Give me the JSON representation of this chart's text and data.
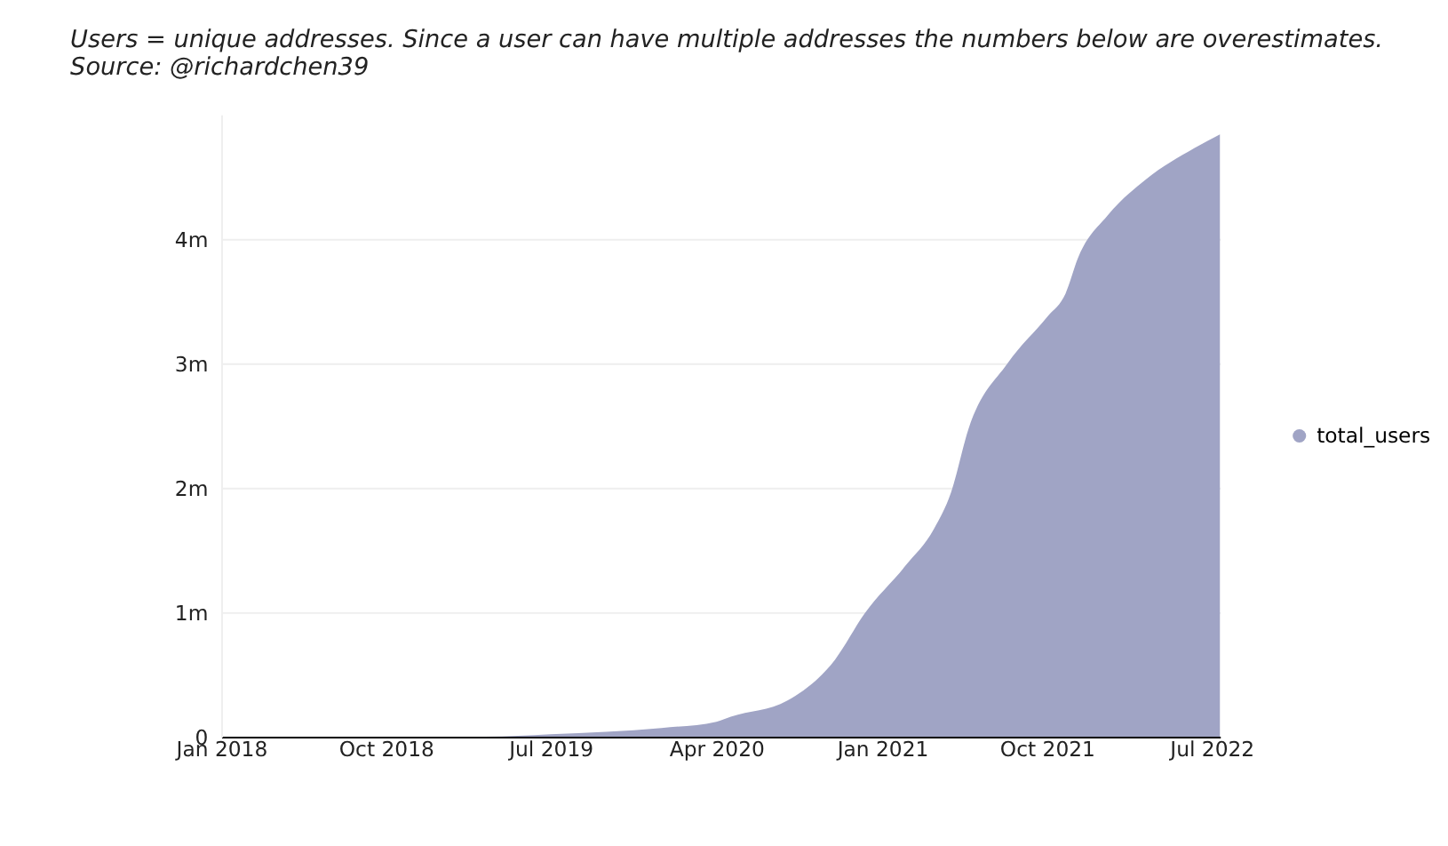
{
  "chart_data": {
    "type": "area",
    "subtitle": "Users = unique addresses. Since a user can have multiple addresses the numbers below are overestimates. Source: @richardchen39",
    "x": [
      "2018-01-01",
      "2019-03-15",
      "2019-07-01",
      "2020-01-01",
      "2020-04-01",
      "2020-04-25",
      "2020-07-28",
      "2020-10-15",
      "2020-12-03",
      "2021-02-08",
      "2021-03-28",
      "2021-04-25",
      "2021-05-24",
      "2021-07-28",
      "2021-10-03",
      "2021-11-01",
      "2021-11-22",
      "2022-01-10",
      "2022-03-15",
      "2022-06-03",
      "2022-07-15"
    ],
    "series": [
      {
        "name": "total_users",
        "color": "#a0a4c5",
        "values": [
          0,
          0,
          20000,
          70000,
          120000,
          160000,
          290000,
          620000,
          990000,
          1370000,
          1670000,
          1960000,
          2470000,
          3000000,
          3380000,
          3560000,
          3850000,
          4190000,
          4480000,
          4730000,
          4840000
        ]
      }
    ],
    "xlim": [
      "2018-01-01",
      "2022-07-15"
    ],
    "xticks": [
      {
        "value": "2018-01-01",
        "label": "Jan 2018"
      },
      {
        "value": "2018-10-01",
        "label": "Oct 2018"
      },
      {
        "value": "2019-07-01",
        "label": "Jul 2019"
      },
      {
        "value": "2020-04-01",
        "label": "Apr 2020"
      },
      {
        "value": "2021-01-01",
        "label": "Jan 2021"
      },
      {
        "value": "2021-10-01",
        "label": "Oct 2021"
      },
      {
        "value": "2022-07-01",
        "label": "Jul 2022"
      }
    ],
    "ylim": [
      0,
      5000000
    ],
    "yticks": [
      {
        "value": 0,
        "label": "0"
      },
      {
        "value": 1000000,
        "label": "1m"
      },
      {
        "value": 2000000,
        "label": "2m"
      },
      {
        "value": 3000000,
        "label": "3m"
      },
      {
        "value": 4000000,
        "label": "4m"
      }
    ],
    "grid": "y",
    "legend": "right"
  }
}
